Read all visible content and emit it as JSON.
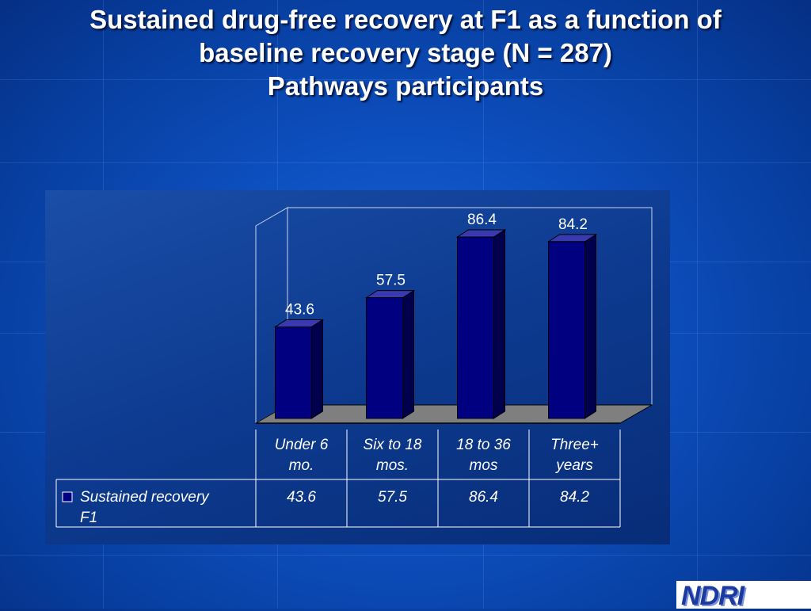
{
  "slide": {
    "title_lines": [
      "Sustained drug-free recovery at F1 as a function of",
      "baseline recovery stage (N = 287)",
      "Pathways participants"
    ]
  },
  "logo": {
    "text": "NDRI"
  },
  "colors": {
    "bar_front": "#000080",
    "bar_side": "#00004d",
    "bar_top": "#3a3ab0",
    "floor": "#7f7f7f",
    "panel_bg": "#0b3a8f"
  },
  "chart_data": {
    "type": "bar",
    "title": "",
    "categories": [
      [
        "Under 6",
        "mo."
      ],
      [
        "Six to 18",
        "mos."
      ],
      [
        "18 to 36",
        "mos"
      ],
      [
        "Three+",
        "years"
      ]
    ],
    "series": [
      {
        "name": "Sustained recovery F1",
        "name_lines": [
          "Sustained recovery",
          "F1"
        ],
        "values": [
          43.6,
          57.5,
          86.4,
          84.2
        ]
      }
    ],
    "ylim": [
      0,
      100
    ],
    "grid": false,
    "legend": "table-below",
    "data_labels": [
      "43.6",
      "57.5",
      "86.4",
      "84.2"
    ]
  }
}
